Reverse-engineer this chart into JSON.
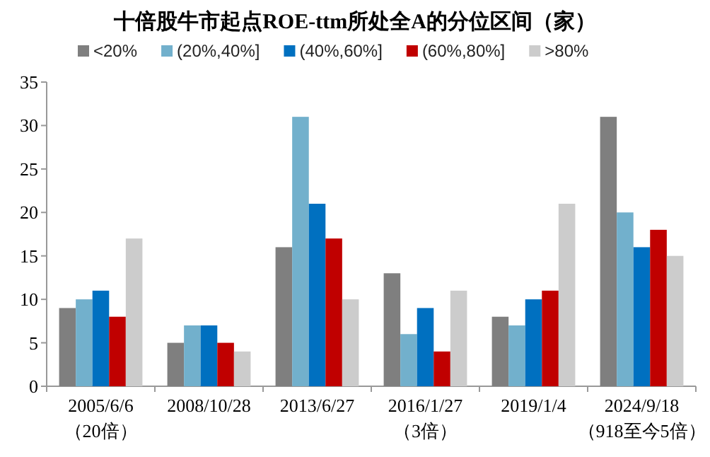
{
  "chart_data": {
    "type": "bar",
    "title": "十倍股牛市起点ROE-ttm所处全A的分位区间（家）",
    "categories": [
      "2005/6/6\n（20倍）",
      "2008/10/28",
      "2013/6/27",
      "2016/1/27\n（3倍）",
      "2019/1/4",
      "2024/9/18\n（918至今5倍）"
    ],
    "series": [
      {
        "name": "<20%",
        "color": "#7f7f7f",
        "values": [
          9,
          5,
          16,
          13,
          8,
          31
        ]
      },
      {
        "name": "(20%,40%]",
        "color": "#72b0cc",
        "values": [
          10,
          7,
          31,
          6,
          7,
          20
        ]
      },
      {
        "name": "(40%,60%]",
        "color": "#0070c0",
        "values": [
          11,
          7,
          21,
          9,
          10,
          16
        ]
      },
      {
        "name": "(60%,80%]",
        "color": "#c00000",
        "values": [
          8,
          5,
          17,
          4,
          11,
          18
        ]
      },
      {
        "name": ">80%",
        "color": "#cccccc",
        "values": [
          17,
          4,
          10,
          11,
          21,
          15
        ]
      }
    ],
    "ylim": [
      0,
      35
    ],
    "yticks": [
      0,
      5,
      10,
      15,
      20,
      25,
      30,
      35
    ],
    "grid": false,
    "legend": "top"
  }
}
